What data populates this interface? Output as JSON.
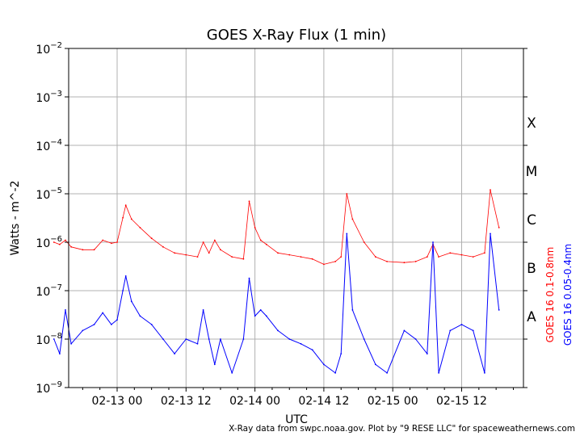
{
  "chart_data": {
    "type": "line",
    "title": "GOES X-Ray Flux (1 min)",
    "xlabel": "UTC",
    "ylabel": "Watts - m^-2",
    "y_scale": "log",
    "ylim": [
      "1e-9",
      "1e-2"
    ],
    "y_ticks": [
      {
        "base": "10",
        "exp": "−2"
      },
      {
        "base": "10",
        "exp": "−3"
      },
      {
        "base": "10",
        "exp": "−4"
      },
      {
        "base": "10",
        "exp": "−5"
      },
      {
        "base": "10",
        "exp": "−6"
      },
      {
        "base": "10",
        "exp": "−7"
      },
      {
        "base": "10",
        "exp": "−8"
      },
      {
        "base": "10",
        "exp": "−9"
      }
    ],
    "x_ticks": [
      "02-13 00",
      "02-13 12",
      "02-14 00",
      "02-14 12",
      "02-15 00",
      "02-15 12"
    ],
    "flare_classes": [
      "X",
      "M",
      "C",
      "B",
      "A"
    ],
    "grid": true,
    "credit": "X-Ray data from swpc.noaa.gov. Plot by \"9 RESE LLC\" for spaceweathernews.com",
    "series": [
      {
        "name": "GOES 16 0.1-0.8nm",
        "color": "#ff0000",
        "points": [
          [
            "02-12 13:00",
            1e-06
          ],
          [
            "02-12 14:00",
            9e-07
          ],
          [
            "02-12 15:00",
            1.1e-06
          ],
          [
            "02-12 16:00",
            8e-07
          ],
          [
            "02-12 18:00",
            7e-07
          ],
          [
            "02-12 20:00",
            7e-07
          ],
          [
            "02-12 21:30",
            1.1e-06
          ],
          [
            "02-12 23:00",
            9.5e-07
          ],
          [
            "02-13 00:00",
            1e-06
          ],
          [
            "02-13 01:00",
            3.2e-06
          ],
          [
            "02-13 01:30",
            5.8e-06
          ],
          [
            "02-13 02:30",
            3e-06
          ],
          [
            "02-13 04:00",
            2e-06
          ],
          [
            "02-13 06:00",
            1.2e-06
          ],
          [
            "02-13 08:00",
            8e-07
          ],
          [
            "02-13 10:00",
            6e-07
          ],
          [
            "02-13 12:00",
            5.5e-07
          ],
          [
            "02-13 14:00",
            5e-07
          ],
          [
            "02-13 15:00",
            1e-06
          ],
          [
            "02-13 16:00",
            6e-07
          ],
          [
            "02-13 17:00",
            1.1e-06
          ],
          [
            "02-13 18:00",
            7e-07
          ],
          [
            "02-13 20:00",
            5e-07
          ],
          [
            "02-13 22:00",
            4.5e-07
          ],
          [
            "02-13 23:00",
            7e-06
          ],
          [
            "02-14 00:00",
            2e-06
          ],
          [
            "02-14 01:00",
            1.1e-06
          ],
          [
            "02-14 02:00",
            9e-07
          ],
          [
            "02-14 04:00",
            6e-07
          ],
          [
            "02-14 06:00",
            5.5e-07
          ],
          [
            "02-14 08:00",
            5e-07
          ],
          [
            "02-14 10:00",
            4.5e-07
          ],
          [
            "02-14 12:00",
            3.5e-07
          ],
          [
            "02-14 14:00",
            4e-07
          ],
          [
            "02-14 15:00",
            5e-07
          ],
          [
            "02-14 16:00",
            1e-05
          ],
          [
            "02-14 17:00",
            3e-06
          ],
          [
            "02-14 19:00",
            1e-06
          ],
          [
            "02-14 21:00",
            5e-07
          ],
          [
            "02-14 23:00",
            4e-07
          ],
          [
            "02-15 02:00",
            3.8e-07
          ],
          [
            "02-15 04:00",
            4e-07
          ],
          [
            "02-15 06:00",
            5e-07
          ],
          [
            "02-15 07:00",
            9e-07
          ],
          [
            "02-15 08:00",
            5e-07
          ],
          [
            "02-15 10:00",
            6e-07
          ],
          [
            "02-15 12:00",
            5.5e-07
          ],
          [
            "02-15 14:00",
            5e-07
          ],
          [
            "02-15 16:00",
            6e-07
          ],
          [
            "02-15 17:00",
            1.2e-05
          ],
          [
            "02-15 18:30",
            2e-06
          ]
        ]
      },
      {
        "name": "GOES 16 0.05-0.4nm",
        "color": "#0000ff",
        "points": [
          [
            "02-12 13:00",
            1e-08
          ],
          [
            "02-12 14:00",
            5e-09
          ],
          [
            "02-12 15:00",
            4e-08
          ],
          [
            "02-12 16:00",
            8e-09
          ],
          [
            "02-12 18:00",
            1.5e-08
          ],
          [
            "02-12 20:00",
            2e-08
          ],
          [
            "02-12 21:30",
            3.5e-08
          ],
          [
            "02-12 23:00",
            2e-08
          ],
          [
            "02-13 00:00",
            2.5e-08
          ],
          [
            "02-13 01:00",
            1e-07
          ],
          [
            "02-13 01:30",
            2e-07
          ],
          [
            "02-13 02:30",
            6e-08
          ],
          [
            "02-13 04:00",
            3e-08
          ],
          [
            "02-13 06:00",
            2e-08
          ],
          [
            "02-13 08:00",
            1e-08
          ],
          [
            "02-13 10:00",
            5e-09
          ],
          [
            "02-13 12:00",
            1e-08
          ],
          [
            "02-13 14:00",
            8e-09
          ],
          [
            "02-13 15:00",
            4e-08
          ],
          [
            "02-13 16:00",
            1e-08
          ],
          [
            "02-13 17:00",
            3e-09
          ],
          [
            "02-13 18:00",
            1e-08
          ],
          [
            "02-13 20:00",
            2e-09
          ],
          [
            "02-13 22:00",
            1e-08
          ],
          [
            "02-13 23:00",
            1.8e-07
          ],
          [
            "02-14 00:00",
            3e-08
          ],
          [
            "02-14 01:00",
            4e-08
          ],
          [
            "02-14 02:00",
            3e-08
          ],
          [
            "02-14 04:00",
            1.5e-08
          ],
          [
            "02-14 06:00",
            1e-08
          ],
          [
            "02-14 08:00",
            8e-09
          ],
          [
            "02-14 10:00",
            6e-09
          ],
          [
            "02-14 12:00",
            3e-09
          ],
          [
            "02-14 14:00",
            2e-09
          ],
          [
            "02-14 15:00",
            5e-09
          ],
          [
            "02-14 16:00",
            1.5e-06
          ],
          [
            "02-14 17:00",
            4e-08
          ],
          [
            "02-14 19:00",
            1e-08
          ],
          [
            "02-14 21:00",
            3e-09
          ],
          [
            "02-14 23:00",
            2e-09
          ],
          [
            "02-15 02:00",
            1.5e-08
          ],
          [
            "02-15 04:00",
            1e-08
          ],
          [
            "02-15 06:00",
            5e-09
          ],
          [
            "02-15 07:00",
            1e-06
          ],
          [
            "02-15 08:00",
            2e-09
          ],
          [
            "02-15 10:00",
            1.5e-08
          ],
          [
            "02-15 12:00",
            2e-08
          ],
          [
            "02-15 14:00",
            1.5e-08
          ],
          [
            "02-15 16:00",
            2e-09
          ],
          [
            "02-15 17:00",
            1.5e-06
          ],
          [
            "02-15 18:30",
            4e-08
          ]
        ]
      }
    ]
  }
}
